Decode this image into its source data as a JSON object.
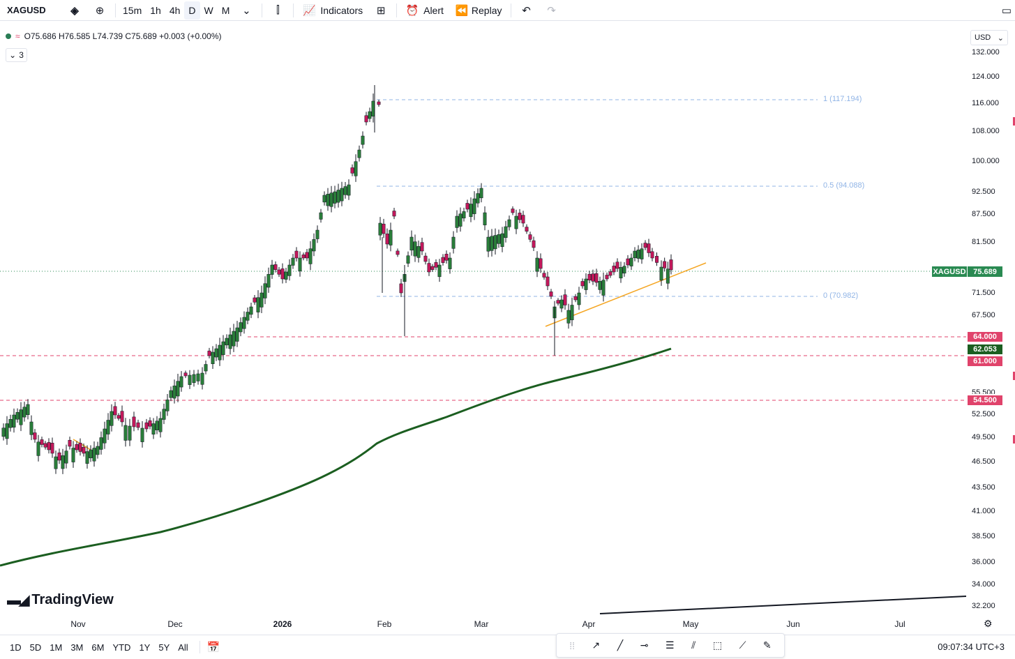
{
  "toolbar": {
    "symbol": "XAGUSD",
    "timeframes": [
      "15m",
      "1h",
      "4h",
      "D",
      "W",
      "M"
    ],
    "active_timeframe": "D",
    "indicators_label": "Indicators",
    "alert_label": "Alert",
    "replay_label": "Replay"
  },
  "legend": {
    "ohlc": "O75.686 H76.585 L74.739 C75.689 +0.003 (+0.00%)",
    "collapsed_count": "3"
  },
  "currency": "USD",
  "price_axis": [
    "132.000",
    "124.000",
    "116.000",
    "108.000",
    "100.000",
    "92.500",
    "87.500",
    "81.500",
    "71.500",
    "67.500",
    "52.500",
    "49.500",
    "46.500",
    "43.500",
    "41.000",
    "38.500",
    "36.000",
    "34.000",
    "32.200"
  ],
  "time_axis": [
    "Nov",
    "Dec",
    "2026",
    "Feb",
    "Mar",
    "Apr",
    "May",
    "Jun",
    "Jul"
  ],
  "price_tags": {
    "symbol": "XAGUSD",
    "last": "75.689",
    "level_64": "64.000",
    "ma": "62.053",
    "level_61": "61.000",
    "level_545": "54.500",
    "partial_label": "55.500"
  },
  "fib_labels": {
    "f1": "1 (117.194)",
    "f05": "0.5 (94.088)",
    "f0": "0 (70.982)"
  },
  "brand": "TradingView",
  "ranges": [
    "1D",
    "5D",
    "1M",
    "3M",
    "6M",
    "YTD",
    "1Y",
    "5Y",
    "All"
  ],
  "clock": "09:07:34 UTC+3",
  "colors": {
    "up": "#2a7d3a",
    "down": "#c2185b",
    "ma": "#1b5e20",
    "trend": "#f5a623",
    "level": "#e0436b",
    "fib": "#90b4e6"
  },
  "chart_data": {
    "type": "candlestick",
    "title": "",
    "ma_current": 62.053,
    "horizontal_levels": [
      64.0,
      61.0,
      54.5
    ],
    "fib_levels": [
      {
        "ratio": 1,
        "price": 117.194
      },
      {
        "ratio": 0.5,
        "price": 94.088
      },
      {
        "ratio": 0,
        "price": 70.982
      }
    ]
  }
}
